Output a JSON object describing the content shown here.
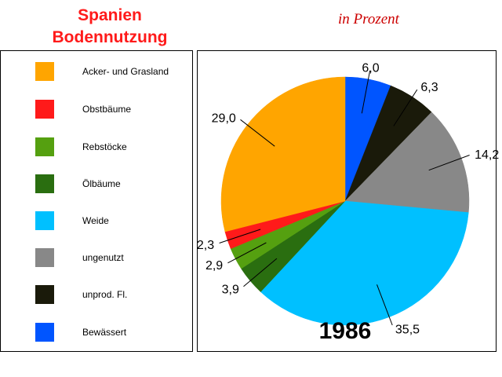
{
  "title_line1": "Spanien",
  "title_line2": "Bodennutzung",
  "subtitle": "in Prozent",
  "chart_data": {
    "type": "pie",
    "categories": [
      "Bewässert",
      "unprod. Fl.",
      "ungenutzt",
      "Weide",
      "Ölbäume",
      "Rebstöcke",
      "Obstbäume",
      "Acker- und Grasland"
    ],
    "values": [
      6.0,
      6.3,
      14.2,
      35.5,
      3.9,
      2.9,
      2.3,
      29.0
    ],
    "value_labels": [
      "6,0",
      "6,3",
      "14,2",
      "35,5",
      "3,9",
      "2,9",
      "2,3",
      "29,0"
    ],
    "colors": [
      "#0055ff",
      "#1a1a0a",
      "#888888",
      "#00c0ff",
      "#2a6e10",
      "#55a010",
      "#ff1a1a",
      "#ffa500"
    ],
    "start_at": "top",
    "direction": "clockwise",
    "year_label": "1986"
  },
  "legend": {
    "items": [
      {
        "label": "Acker- und Grasland",
        "color": "#ffa500"
      },
      {
        "label": "Obstbäume",
        "color": "#ff1a1a"
      },
      {
        "label": "Rebstöcke",
        "color": "#55a010"
      },
      {
        "label": "Ölbäume",
        "color": "#2a6e10"
      },
      {
        "label": "Weide",
        "color": "#00c0ff"
      },
      {
        "label": "ungenutzt",
        "color": "#888888"
      },
      {
        "label": "unprod. Fl.",
        "color": "#1a1a0a"
      },
      {
        "label": "Bewässert",
        "color": "#0055ff"
      }
    ]
  }
}
